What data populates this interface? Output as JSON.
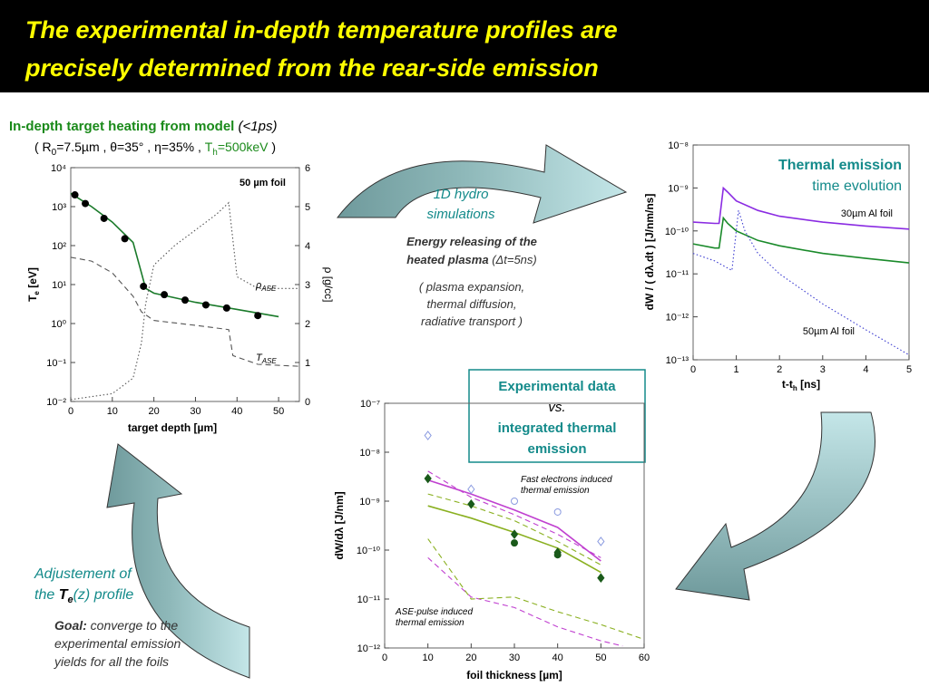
{
  "title": [
    "The experimental in-depth temperature profiles are",
    "precisely determined from the rear-side emission"
  ],
  "model_heading": [
    "In-depth target heating from model",
    " (<1ps)"
  ],
  "params": [
    "( R",
    "0",
    "=7.5µm ,  θ=35° ,  η=35% ,  ",
    "T",
    "h",
    "=500keV",
    " )"
  ],
  "thermal_heading": [
    "Thermal emission",
    "time evolution"
  ],
  "hydro": [
    "1D hydro",
    "simulations"
  ],
  "energy": [
    "Energy releasing of the",
    "heated plasma ",
    "(Δt=5ns)"
  ],
  "transport": [
    "( plasma expansion,",
    "thermal diffusion,",
    "radiative transport )"
  ],
  "comparison": [
    "Experimental data",
    "vs.",
    "integrated thermal",
    "emission"
  ],
  "adjust": [
    "Adjustement of",
    "the ",
    "T",
    "e",
    "(z) profile"
  ],
  "goal": [
    "Goal:",
    " converge to the",
    "experimental emission",
    "yields for all the foils"
  ],
  "chart_data": [
    {
      "type": "line",
      "log": true,
      "xlabel": [
        "target depth [µm]"
      ],
      "ylabel": [
        "T",
        "e",
        " [eV]"
      ],
      "y2label": [
        "ρ [g/cc]"
      ],
      "annotations": [
        [
          "50 µm foil"
        ],
        [
          "ρ",
          "ASE"
        ],
        [
          "T",
          "ASE"
        ]
      ],
      "xlim": [
        0,
        55
      ],
      "xticks": [
        0,
        10,
        20,
        30,
        40,
        50
      ],
      "ylim": [
        0.01,
        10000
      ],
      "yticks": [
        {
          "value": 0.01,
          "label": "10⁻²"
        },
        {
          "value": 0.1,
          "label": "10⁻¹"
        },
        {
          "value": 1,
          "label": "10⁰"
        },
        {
          "value": 10,
          "label": "10¹"
        },
        {
          "value": 100,
          "label": "10²"
        },
        {
          "value": 1000,
          "label": "10³"
        },
        {
          "value": 10000,
          "label": "10⁴"
        }
      ],
      "y2lim": [
        0,
        6
      ],
      "y2ticks": [
        0,
        1,
        2,
        3,
        4,
        5,
        6
      ],
      "series": [
        {
          "color": "#1a7a2a",
          "style": "solid",
          "marker": "none",
          "x": [
            0,
            5,
            10,
            15,
            17,
            18,
            20,
            30,
            40,
            50
          ],
          "values": [
            2200,
            1000,
            400,
            120,
            20,
            8,
            6,
            3.5,
            2.3,
            1.5
          ]
        },
        {
          "color": "#555555",
          "style": "dotted",
          "marker": "none",
          "axis": "y2",
          "x": [
            0,
            10,
            15,
            17,
            18,
            20,
            25,
            30,
            35,
            38,
            40,
            45,
            55
          ],
          "values": [
            0.05,
            0.2,
            0.6,
            1.5,
            2.5,
            3.5,
            4,
            4.4,
            4.8,
            5.1,
            3.2,
            2.9,
            2.9
          ]
        },
        {
          "color": "#555555",
          "style": "dashed",
          "marker": "none",
          "x": [
            0,
            5,
            10,
            15,
            17,
            20,
            30,
            38,
            39,
            45,
            55
          ],
          "values": [
            50,
            40,
            20,
            5,
            2,
            1.2,
            0.9,
            0.7,
            0.15,
            0.09,
            0.08
          ]
        },
        {
          "color": "#000000",
          "style": "none",
          "marker": "circle",
          "x": [
            1,
            3.5,
            8,
            13,
            17.5,
            22.5,
            27.5,
            32.5,
            37.5,
            45
          ],
          "values": [
            2000,
            1200,
            500,
            150,
            9,
            5.5,
            4,
            3,
            2.5,
            1.6
          ]
        }
      ]
    },
    {
      "type": "line",
      "log": true,
      "xlabel": [
        "t-t",
        "h",
        " [ns]"
      ],
      "ylabel": [
        "dW / ( dλ.dt ) [J/nm/ns]"
      ],
      "annotations": [
        [
          "30µm Al foil"
        ],
        [
          "50µm Al foil"
        ]
      ],
      "xlim": [
        0,
        5
      ],
      "xticks": [
        0,
        1,
        2,
        3,
        4,
        5
      ],
      "ylim": [
        1e-13,
        1e-08
      ],
      "yticks": [
        {
          "value": 1e-13,
          "label": "10⁻¹³"
        },
        {
          "value": 1e-12,
          "label": "10⁻¹²"
        },
        {
          "value": 1e-11,
          "label": "10⁻¹¹"
        },
        {
          "value": 1e-10,
          "label": "10⁻¹⁰"
        },
        {
          "value": 1e-09,
          "label": "10⁻⁹"
        },
        {
          "value": 1e-08,
          "label": "10⁻⁸"
        }
      ],
      "series": [
        {
          "color": "#8a2be2",
          "style": "solid",
          "marker": "none",
          "x": [
            0,
            0.5,
            0.6,
            0.7,
            0.8,
            1,
            1.5,
            2,
            3,
            4,
            5
          ],
          "values": [
            1.6e-10,
            1.5e-10,
            1.5e-10,
            1e-09,
            8e-10,
            5e-10,
            3e-10,
            2.2e-10,
            1.6e-10,
            1.3e-10,
            1.1e-10
          ]
        },
        {
          "color": "#1a8a2a",
          "style": "solid",
          "marker": "none",
          "x": [
            0,
            0.5,
            0.6,
            0.7,
            0.8,
            1,
            1.5,
            2,
            3,
            4,
            5
          ],
          "values": [
            5e-11,
            4e-11,
            4e-11,
            2e-10,
            1.5e-10,
            1e-10,
            6e-11,
            4.5e-11,
            3e-11,
            2.3e-11,
            1.8e-11
          ]
        },
        {
          "color": "#3a3ad0",
          "style": "dotted",
          "marker": "none",
          "x": [
            0,
            0.5,
            0.9,
            1.05,
            1.2,
            1.5,
            2,
            3,
            4,
            5
          ],
          "values": [
            3e-11,
            2e-11,
            1.2e-11,
            3e-10,
            1e-10,
            3e-11,
            1e-11,
            2e-12,
            5e-13,
            1.3e-13
          ]
        }
      ]
    },
    {
      "type": "line",
      "log": true,
      "xlabel": [
        "foil thickness [µm]"
      ],
      "ylabel": [
        "dW/dλ  [J/nm]"
      ],
      "annotations": [
        [
          "Fast electrons induced",
          "thermal emission"
        ],
        [
          "ASE-pulse induced",
          "thermal emission"
        ]
      ],
      "xlim": [
        0,
        60
      ],
      "xticks": [
        0,
        10,
        20,
        30,
        40,
        50,
        60
      ],
      "ylim": [
        1e-12,
        1e-07
      ],
      "yticks": [
        {
          "value": 1e-12,
          "label": "10⁻¹²"
        },
        {
          "value": 1e-11,
          "label": "10⁻¹¹"
        },
        {
          "value": 1e-10,
          "label": "10⁻¹⁰"
        },
        {
          "value": 1e-09,
          "label": "10⁻⁹"
        },
        {
          "value": 1e-08,
          "label": "10⁻⁸"
        },
        {
          "value": 1e-07,
          "label": "10⁻⁷"
        }
      ],
      "series": [
        {
          "color": "#c040d0",
          "style": "solid",
          "marker": "none",
          "x": [
            10,
            20,
            30,
            40,
            50
          ],
          "values": [
            2.7e-09,
            1.4e-09,
            6.6e-10,
            2.9e-10,
            6e-11
          ]
        },
        {
          "color": "#8ab020",
          "style": "solid",
          "marker": "none",
          "x": [
            10,
            20,
            30,
            40,
            50
          ],
          "values": [
            8e-10,
            4.5e-10,
            2.3e-10,
            1.1e-10,
            3.5e-11
          ]
        },
        {
          "color": "#c040d0",
          "style": "dashed",
          "marker": "none",
          "x": [
            10,
            20,
            30,
            40,
            50
          ],
          "values": [
            4.1e-09,
            1.2e-09,
            5.3e-10,
            2.1e-10,
            7e-11
          ]
        },
        {
          "color": "#8ab020",
          "style": "dashed",
          "marker": "none",
          "x": [
            10,
            20,
            30,
            40,
            50
          ],
          "values": [
            1.4e-09,
            8e-10,
            4e-10,
            1.5e-10,
            5e-11
          ]
        },
        {
          "color": "#c040d0",
          "style": "dashed",
          "marker": "none",
          "x": [
            10,
            20,
            30,
            40,
            50,
            55
          ],
          "values": [
            7e-11,
            1.1e-11,
            6.7e-12,
            2.7e-12,
            1.4e-12,
            1.1e-12
          ]
        },
        {
          "color": "#8ab020",
          "style": "dashed",
          "marker": "none",
          "x": [
            10,
            20,
            30,
            40,
            50,
            60
          ],
          "values": [
            1.7e-10,
            1e-11,
            1.1e-11,
            5.5e-12,
            3e-12,
            1.5e-12
          ]
        },
        {
          "color": "#1a5a1a",
          "style": "none",
          "marker": "diamond",
          "x": [
            10,
            20,
            30,
            40,
            50
          ],
          "values": [
            2.9e-09,
            8.7e-10,
            2.1e-10,
            9e-11,
            2.7e-11
          ]
        },
        {
          "color": "#1a5a1a",
          "style": "none",
          "marker": "circle",
          "x": [
            30,
            40
          ],
          "values": [
            1.4e-10,
            8e-11
          ]
        },
        {
          "color": "#8a9ae0",
          "style": "none",
          "marker": "open-diamond",
          "x": [
            10,
            20,
            50
          ],
          "values": [
            2.2e-08,
            1.75e-09,
            1.5e-10
          ]
        },
        {
          "color": "#8a9ae0",
          "style": "none",
          "marker": "open-circle",
          "x": [
            30,
            40
          ],
          "values": [
            1e-09,
            6e-10
          ]
        }
      ]
    }
  ]
}
